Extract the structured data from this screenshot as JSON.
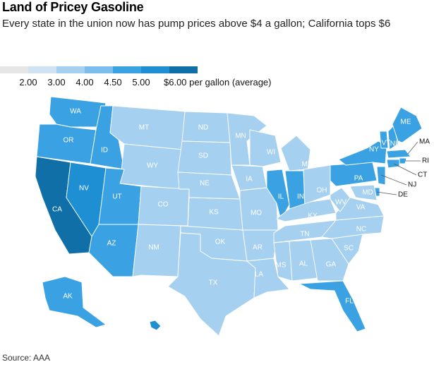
{
  "title": "Land of Pricey Gasoline",
  "subtitle": "Every state in the union now has pump prices above $4 a gallon; California tops $6",
  "legend": {
    "colors": [
      "#e6e6e6",
      "#cfe3f3",
      "#a6d0f0",
      "#7dbdee",
      "#3aa2e2",
      "#1f8fd3",
      "#0f6fa6"
    ],
    "ticks": [
      "2.00",
      "3.00",
      "4.00",
      "4.50",
      "5.00",
      "$6.00 per gallon (average)"
    ]
  },
  "source": "Source: AAA",
  "states": {
    "WA": "4.50",
    "OR": "4.50",
    "CA": "6.00",
    "NV": "5.00",
    "ID": "4.50",
    "MT": "4.00",
    "WY": "4.00",
    "UT": "4.50",
    "AZ": "4.50",
    "CO": "4.00",
    "NM": "4.00",
    "ND": "4.00",
    "SD": "4.00",
    "NE": "4.00",
    "KS": "4.00",
    "OK": "4.00",
    "TX": "4.00",
    "MN": "4.00",
    "IA": "4.00",
    "MO": "4.00",
    "AR": "4.00",
    "LA": "4.00",
    "WI": "4.00",
    "IL": "4.50",
    "MI": "4.00",
    "IN": "4.50",
    "OH": "4.00",
    "KY": "4.00",
    "TN": "4.00",
    "MS": "4.00",
    "AL": "4.00",
    "GA": "4.00",
    "FL": "4.50",
    "SC": "4.00",
    "NC": "4.00",
    "VA": "4.00",
    "WV": "4.00",
    "PA": "4.50",
    "NY": "4.50",
    "VT": "4.50",
    "NH": "4.50",
    "ME": "4.50",
    "MA": "4.50",
    "RI": "4.50",
    "CT": "4.50",
    "NJ": "4.50",
    "DE": "4.50",
    "MD": "4.00",
    "AK": "4.50",
    "HI": "5.00"
  },
  "callouts": [
    "MA",
    "RI",
    "CT",
    "NJ",
    "DE"
  ]
}
